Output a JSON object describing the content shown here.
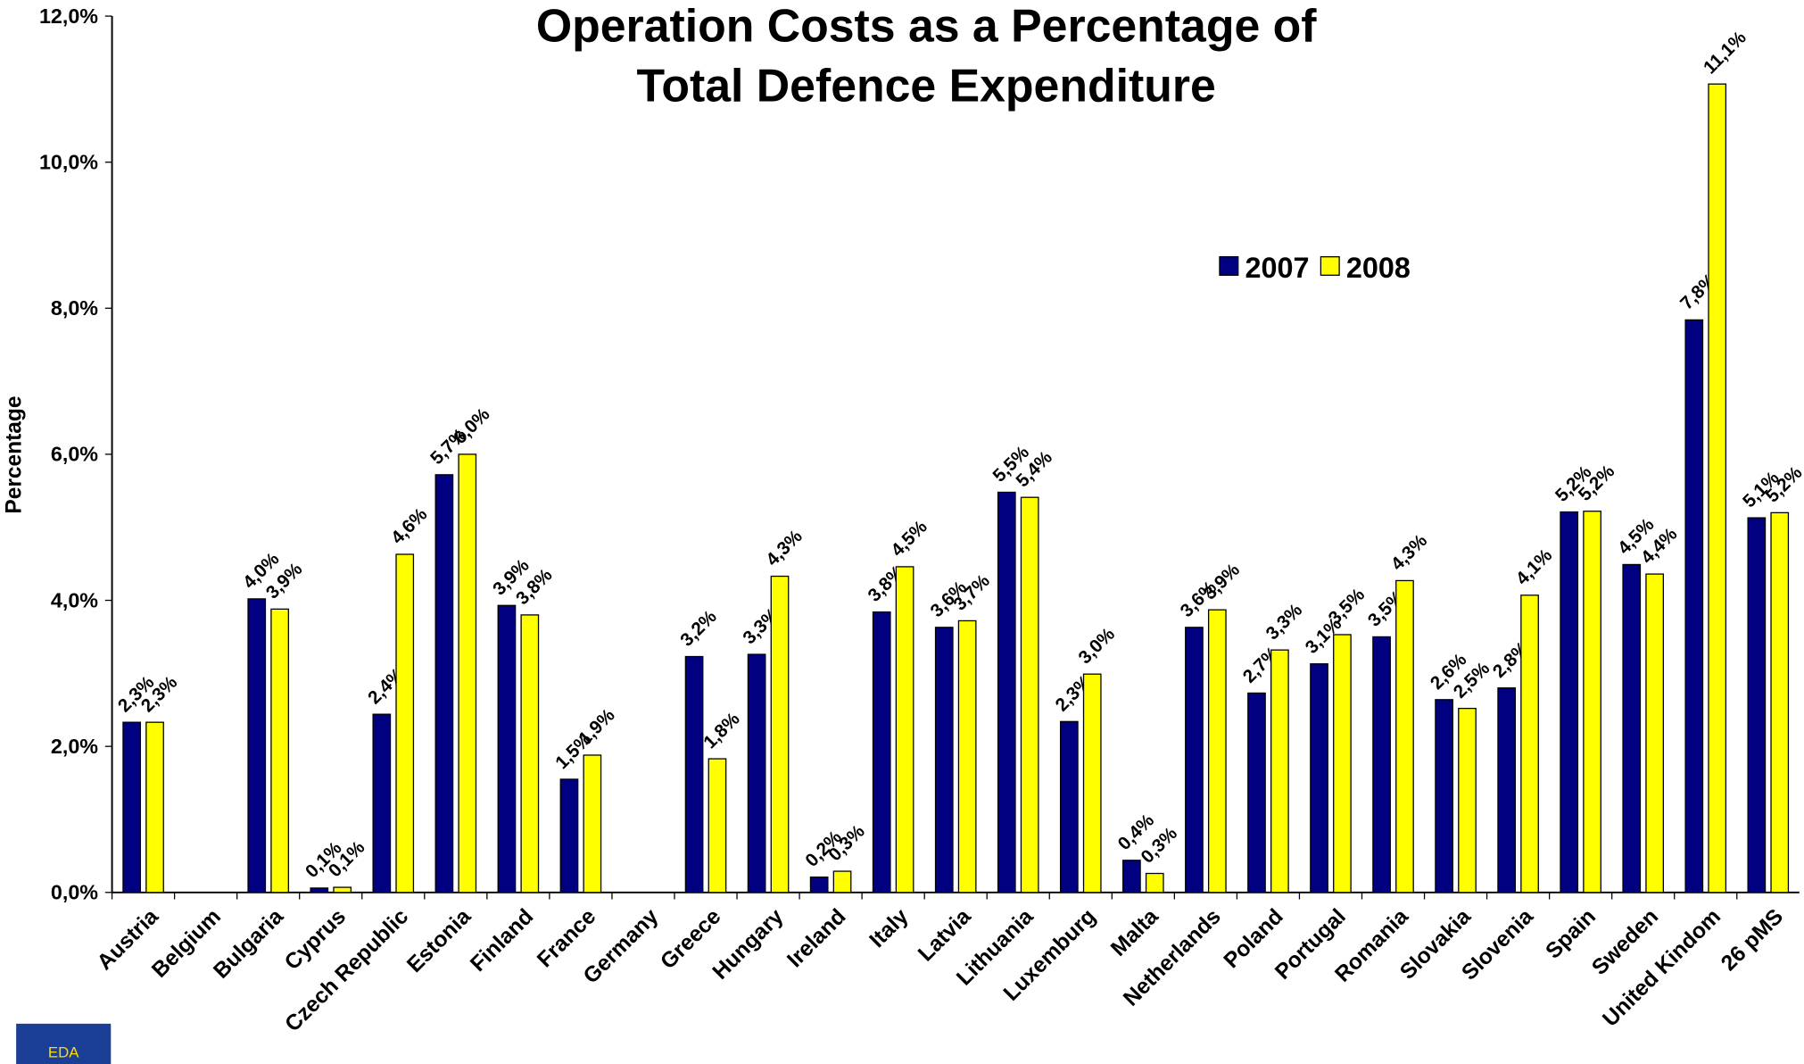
{
  "chart_data": {
    "type": "bar",
    "title": [
      "Operation Costs as a Percentage of",
      "Total Defence Expenditure"
    ],
    "y_label": "Percentage",
    "logo_text": "EDA",
    "categories": [
      "Austria",
      "Belgium",
      "Bulgaria",
      "Cyprus",
      "Czech Republic",
      "Estonia",
      "Finland",
      "France",
      "Germany",
      "Greece",
      "Hungary",
      "Ireland",
      "Italy",
      "Latvia",
      "Lithuania",
      "Luxemburg",
      "Malta",
      "Netherlands",
      "Poland",
      "Portugal",
      "Romania",
      "Slovakia",
      "Slovenia",
      "Spain",
      "Sweden",
      "United Kindom",
      "26 pMS"
    ],
    "series": [
      {
        "name": "2007",
        "color": "#000080",
        "values": [
          2.33,
          null,
          4.02,
          0.06,
          2.44,
          5.72,
          3.93,
          1.55,
          null,
          3.23,
          3.26,
          0.21,
          3.84,
          3.63,
          5.48,
          2.34,
          0.44,
          3.63,
          2.73,
          3.13,
          3.5,
          2.64,
          2.8,
          5.21,
          4.49,
          7.84,
          5.13
        ],
        "value_labels": [
          "2,3%",
          null,
          "4,0%",
          "0,1%",
          "2,4%",
          "5,7%",
          "3,9%",
          "1,5%",
          null,
          "3,2%",
          "3,3%",
          "0,2%",
          "3,8%",
          "3,6%",
          "5,5%",
          "2,3%",
          "0,4%",
          "3,6%",
          "2,7%",
          "3,1%",
          "3,5%",
          "2,6%",
          "2,8%",
          "5,2%",
          "4,5%",
          "7,8%",
          "5,1%"
        ]
      },
      {
        "name": "2008",
        "color": "#ffff00",
        "values": [
          2.33,
          null,
          3.88,
          0.07,
          4.63,
          6.0,
          3.8,
          1.88,
          null,
          1.83,
          4.33,
          0.29,
          4.46,
          3.72,
          5.41,
          2.99,
          0.26,
          3.87,
          3.32,
          3.53,
          4.27,
          2.52,
          4.07,
          5.22,
          4.36,
          11.07,
          5.2
        ],
        "value_labels": [
          "2,3%",
          null,
          "3,9%",
          "0,1%",
          "4,6%",
          "6,0%",
          "3,8%",
          "1,9%",
          null,
          "1,8%",
          "4,3%",
          "0,3%",
          "4,5%",
          "3,7%",
          "5,4%",
          "3,0%",
          "0,3%",
          "3,9%",
          "3,3%",
          "3,5%",
          "4,3%",
          "2,5%",
          "4,1%",
          "5,2%",
          "4,4%",
          "11,1%",
          "5,2%"
        ]
      }
    ],
    "ylim": [
      0,
      12
    ],
    "yticks": [
      {
        "value": 0,
        "label": "0,0%"
      },
      {
        "value": 2,
        "label": "2,0%"
      },
      {
        "value": 4,
        "label": "4,0%"
      },
      {
        "value": 6,
        "label": "6,0%"
      },
      {
        "value": 8,
        "label": "8,0%"
      },
      {
        "value": 10,
        "label": "10,0%"
      },
      {
        "value": 12,
        "label": "12,0%"
      }
    ],
    "grid": false,
    "legend": "upper right"
  }
}
